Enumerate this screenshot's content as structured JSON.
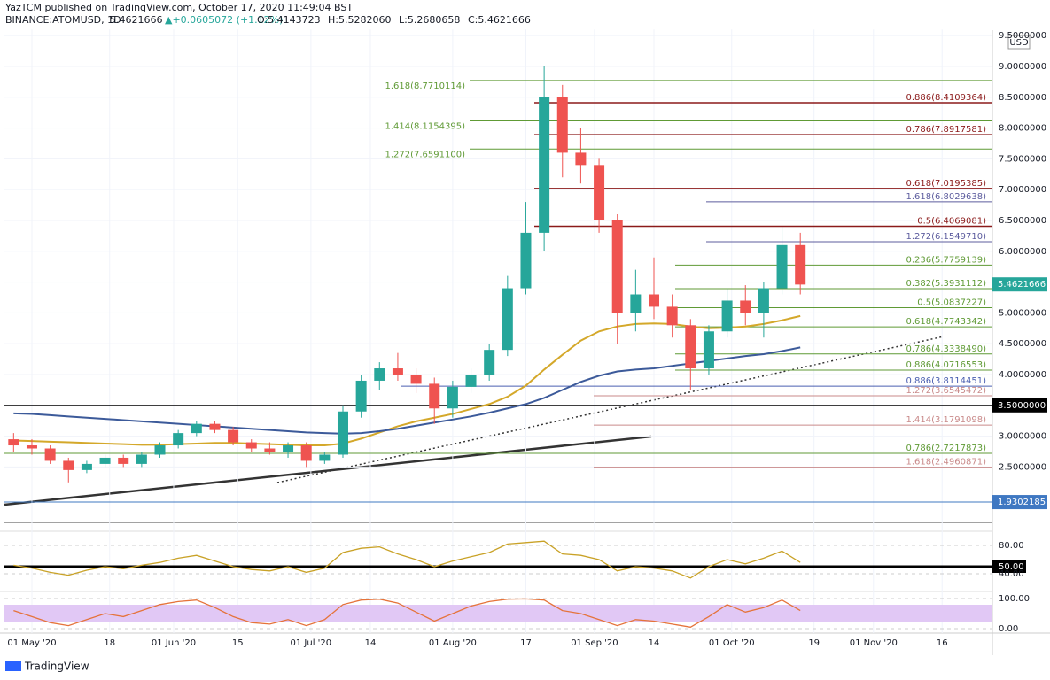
{
  "header": {
    "publisher": "YazTCM published on TradingView.com, October 17, 2020 11:49:04 BST",
    "symbol": "BINANCE:ATOMUSD, 1D",
    "last": "5.4621666",
    "change": "▲+0.0605072 (+1.12%)",
    "open": "O:5.4143723",
    "high": "H:5.5282060",
    "low": "L:5.2680658",
    "close": "C:5.4621666"
  },
  "footer": {
    "brand": "TradingView"
  },
  "chart_data": {
    "type": "candlestick",
    "currency": "USD",
    "grid": true,
    "up_color": "#26a69a",
    "down_color": "#ef5350",
    "x": [
      "2020-04-27",
      "2020-05-01",
      "2020-05-05",
      "2020-05-09",
      "2020-05-13",
      "2020-05-17",
      "2020-05-21",
      "2020-05-25",
      "2020-05-29",
      "2020-06-02",
      "2020-06-06",
      "2020-06-10",
      "2020-06-14",
      "2020-06-18",
      "2020-06-22",
      "2020-06-26",
      "2020-06-30",
      "2020-07-04",
      "2020-07-08",
      "2020-07-12",
      "2020-07-16",
      "2020-07-20",
      "2020-07-24",
      "2020-07-28",
      "2020-08-01",
      "2020-08-05",
      "2020-08-09",
      "2020-08-13",
      "2020-08-17",
      "2020-08-21",
      "2020-08-25",
      "2020-08-29",
      "2020-09-02",
      "2020-09-06",
      "2020-09-10",
      "2020-09-14",
      "2020-09-18",
      "2020-09-22",
      "2020-09-26",
      "2020-09-30",
      "2020-10-04",
      "2020-10-08",
      "2020-10-12",
      "2020-10-16"
    ],
    "open": [
      2.95,
      2.85,
      2.8,
      2.6,
      2.45,
      2.55,
      2.65,
      2.55,
      2.7,
      2.85,
      3.05,
      3.2,
      3.1,
      2.9,
      2.8,
      2.75,
      2.85,
      2.6,
      2.7,
      3.4,
      3.9,
      4.1,
      4.0,
      3.85,
      3.45,
      3.8,
      4.0,
      4.4,
      5.4,
      6.3,
      8.5,
      7.6,
      7.4,
      6.5,
      5.0,
      5.3,
      5.1,
      4.8,
      4.1,
      4.7,
      5.2,
      5.0,
      5.4,
      6.1
    ],
    "high": [
      3.05,
      2.95,
      2.85,
      2.65,
      2.6,
      2.7,
      2.7,
      2.75,
      2.9,
      3.1,
      3.25,
      3.25,
      3.15,
      2.95,
      2.9,
      2.9,
      2.9,
      2.75,
      3.5,
      4.0,
      4.2,
      4.35,
      4.1,
      3.95,
      3.9,
      4.1,
      4.5,
      5.6,
      6.8,
      9.0,
      8.7,
      8.0,
      7.5,
      6.6,
      5.7,
      5.9,
      5.3,
      4.9,
      4.8,
      5.4,
      5.45,
      5.5,
      6.4,
      6.3
    ],
    "low": [
      2.75,
      2.7,
      2.55,
      2.25,
      2.4,
      2.5,
      2.5,
      2.5,
      2.65,
      2.8,
      3.0,
      3.05,
      2.85,
      2.75,
      2.7,
      2.65,
      2.5,
      2.55,
      2.65,
      3.3,
      3.75,
      3.9,
      3.7,
      3.2,
      3.3,
      3.7,
      3.9,
      4.3,
      5.3,
      6.0,
      7.2,
      7.1,
      6.3,
      4.5,
      4.7,
      4.9,
      4.6,
      3.75,
      4.0,
      4.6,
      4.8,
      4.6,
      5.3,
      5.3
    ],
    "close": [
      2.85,
      2.8,
      2.6,
      2.45,
      2.55,
      2.65,
      2.55,
      2.7,
      2.85,
      3.05,
      3.2,
      3.1,
      2.9,
      2.8,
      2.75,
      2.85,
      2.6,
      2.7,
      3.4,
      3.9,
      4.1,
      4.0,
      3.85,
      3.45,
      3.8,
      4.0,
      4.4,
      5.4,
      6.3,
      8.5,
      7.6,
      7.4,
      6.5,
      5.0,
      5.3,
      5.1,
      4.8,
      4.1,
      4.7,
      5.2,
      5.0,
      5.4,
      6.1,
      5.46
    ],
    "moving_averages": [
      {
        "color": "#d4a82a",
        "values": [
          2.93,
          2.92,
          2.91,
          2.9,
          2.89,
          2.88,
          2.87,
          2.86,
          2.86,
          2.87,
          2.88,
          2.89,
          2.89,
          2.88,
          2.87,
          2.86,
          2.85,
          2.85,
          2.88,
          2.96,
          3.06,
          3.16,
          3.24,
          3.3,
          3.36,
          3.44,
          3.52,
          3.64,
          3.82,
          4.08,
          4.32,
          4.55,
          4.7,
          4.78,
          4.82,
          4.83,
          4.82,
          4.78,
          4.75,
          4.76,
          4.78,
          4.82,
          4.88,
          4.95
        ]
      },
      {
        "color": "#3c5a9a",
        "values": [
          3.37,
          3.36,
          3.34,
          3.32,
          3.3,
          3.28,
          3.26,
          3.24,
          3.22,
          3.2,
          3.18,
          3.16,
          3.14,
          3.12,
          3.1,
          3.08,
          3.06,
          3.05,
          3.04,
          3.05,
          3.08,
          3.12,
          3.17,
          3.22,
          3.27,
          3.32,
          3.38,
          3.45,
          3.52,
          3.62,
          3.75,
          3.88,
          3.98,
          4.05,
          4.08,
          4.1,
          4.14,
          4.18,
          4.22,
          4.26,
          4.3,
          4.33,
          4.38,
          4.44
        ]
      }
    ],
    "xlim": [
      "2020-04-25",
      "2020-11-27"
    ],
    "xticks": [
      {
        "value": "2020-05-01",
        "label": "01 May '20"
      },
      {
        "value": "2020-05-18",
        "label": "18"
      },
      {
        "value": "2020-06-01",
        "label": "01 Jun '20"
      },
      {
        "value": "2020-06-15",
        "label": "15"
      },
      {
        "value": "2020-07-01",
        "label": "01 Jul '20"
      },
      {
        "value": "2020-07-14",
        "label": "14"
      },
      {
        "value": "2020-08-01",
        "label": "01 Aug '20"
      },
      {
        "value": "2020-08-17",
        "label": "17"
      },
      {
        "value": "2020-09-01",
        "label": "01 Sep '20"
      },
      {
        "value": "2020-09-14",
        "label": "14"
      },
      {
        "value": "2020-10-01",
        "label": "01 Oct '20"
      },
      {
        "value": "2020-10-19",
        "label": "19"
      },
      {
        "value": "2020-11-01",
        "label": "01 Nov '20"
      },
      {
        "value": "2020-11-16",
        "label": "16"
      }
    ],
    "ylim": [
      1.5,
      9.6
    ],
    "yticks": [
      {
        "value": 2.5,
        "label": "2.5000000"
      },
      {
        "value": 3,
        "label": "3.0000000"
      },
      {
        "value": 3.5,
        "label": "3.5000000"
      },
      {
        "value": 4,
        "label": "4.0000000"
      },
      {
        "value": 4.5,
        "label": "4.5000000"
      },
      {
        "value": 5,
        "label": "5.0000000"
      },
      {
        "value": 5.5,
        "label": "5.5000000"
      },
      {
        "value": 6,
        "label": "6.0000000"
      },
      {
        "value": 6.5,
        "label": "6.5000000"
      },
      {
        "value": 7,
        "label": "7.0000000"
      },
      {
        "value": 7.5,
        "label": "7.5000000"
      },
      {
        "value": 8,
        "label": "8.0000000"
      },
      {
        "value": 8.5,
        "label": "8.5000000"
      },
      {
        "value": 9,
        "label": "9.0000000"
      },
      {
        "value": 9.5,
        "label": "9.5000000"
      }
    ],
    "levels": [
      {
        "label": "1.618(8.7710114)",
        "value": 8.7710114,
        "color": "#5f9a35"
      },
      {
        "label": "1.414(8.1154395)",
        "value": 8.1154395,
        "color": "#5f9a35"
      },
      {
        "label": "1.272(7.6591100)",
        "value": 7.65911,
        "color": "#5f9a35"
      },
      {
        "label": "0.886(8.4109364)",
        "value": 8.4109364,
        "color": "#8b1a1a"
      },
      {
        "label": "0.786(7.8917581)",
        "value": 7.8917581,
        "color": "#8b1a1a"
      },
      {
        "label": "0.618(7.0195385)",
        "value": 7.0195385,
        "color": "#8b1a1a"
      },
      {
        "label": "0.5(6.4069081)",
        "value": 6.4069081,
        "color": "#8b1a1a"
      },
      {
        "label": "1.618(6.8029638)",
        "value": 6.8029638,
        "color": "#5c5c9e"
      },
      {
        "label": "1.272(6.1549710)",
        "value": 6.154971,
        "color": "#5c5c9e"
      },
      {
        "label": "0.236(5.7759139)",
        "value": 5.7759139,
        "color": "#5f9a35"
      },
      {
        "label": "0.382(5.3931112)",
        "value": 5.3931112,
        "color": "#5f9a35"
      },
      {
        "label": "0.5(5.0837227)",
        "value": 5.0837227,
        "color": "#5f9a35"
      },
      {
        "label": "0.618(4.7743342)",
        "value": 4.7743342,
        "color": "#5f9a35"
      },
      {
        "label": "0.786(4.3338490)",
        "value": 4.333849,
        "color": "#5f9a35"
      },
      {
        "label": "0.886(4.0716553)",
        "value": 4.0716553,
        "color": "#5f9a35"
      },
      {
        "label": "0.886(3.8114451)",
        "value": 3.8114451,
        "color": "#4a5fb0"
      },
      {
        "label": "1.272(3.6545472)",
        "value": 3.6545472,
        "color": "#c98a8a"
      },
      {
        "label": "1.414(3.1791098)",
        "value": 3.1791098,
        "color": "#c98a8a"
      },
      {
        "label": "0.786(2.7217873)",
        "value": 2.7217873,
        "color": "#5f9a35"
      },
      {
        "label": "1.618(2.4960871)",
        "value": 2.4960871,
        "color": "#c98a8a"
      }
    ],
    "price_labels": [
      {
        "value": 5.4621666,
        "label": "5.4621666",
        "color": "#26a69a"
      },
      {
        "value": 3.5,
        "label": "3.5000000",
        "color": "#000000"
      },
      {
        "value": 1.9302185,
        "label": "1.9302185",
        "color": "#3f78c2"
      }
    ],
    "rsi": {
      "color": "#c9a227",
      "ylim": [
        20,
        100
      ],
      "yticks": [
        {
          "value": 80,
          "label": "80.00"
        },
        {
          "value": 50,
          "label": "50.00"
        },
        {
          "value": 40,
          "label": "40.00"
        }
      ],
      "values": [
        52,
        48,
        42,
        38,
        45,
        50,
        47,
        52,
        56,
        62,
        66,
        58,
        50,
        46,
        44,
        50,
        42,
        48,
        70,
        76,
        78,
        68,
        60,
        50,
        58,
        64,
        70,
        82,
        84,
        86,
        68,
        66,
        60,
        44,
        50,
        48,
        44,
        34,
        50,
        60,
        54,
        62,
        72,
        56
      ]
    },
    "stoch": {
      "color": "#e5733a",
      "ylim": [
        0,
        100
      ],
      "yticks": [
        {
          "value": 100,
          "label": "100.00"
        },
        {
          "value": 0,
          "label": "0.00"
        }
      ],
      "values": [
        60,
        40,
        20,
        10,
        30,
        50,
        40,
        60,
        80,
        90,
        95,
        70,
        40,
        20,
        15,
        30,
        10,
        30,
        80,
        95,
        98,
        85,
        55,
        25,
        50,
        75,
        90,
        98,
        99,
        95,
        60,
        50,
        30,
        10,
        30,
        25,
        15,
        5,
        40,
        80,
        55,
        70,
        95,
        60
      ]
    }
  }
}
